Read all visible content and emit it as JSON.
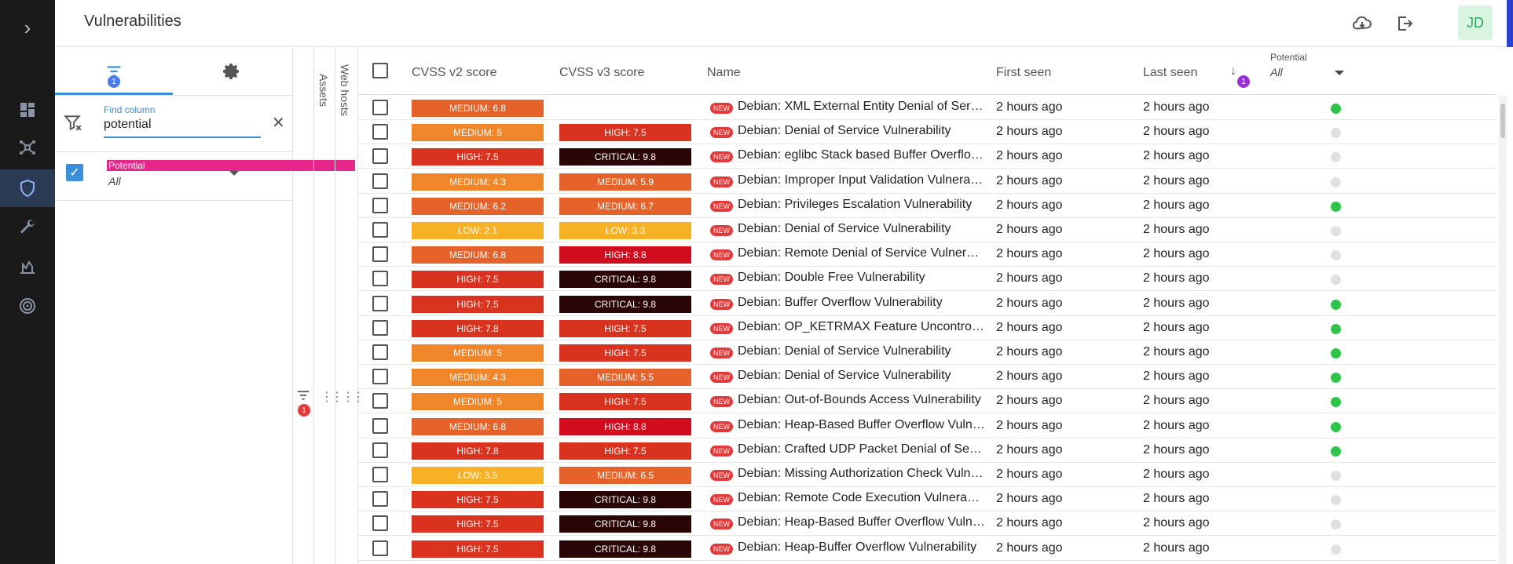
{
  "header": {
    "title": "Vulnerabilities",
    "avatar": "JD",
    "icons": [
      "cloud-download-icon",
      "logout-icon"
    ]
  },
  "nav": [
    "expand-icon",
    "dashboard-icon",
    "network-icon",
    "shield-icon",
    "wrench-icon",
    "activity-icon",
    "radar-icon"
  ],
  "panel": {
    "filters_badge": "1",
    "find_column_label": "Find column",
    "find_column_value": "potential",
    "column": {
      "name": "Potential",
      "value": "All",
      "checked": true
    }
  },
  "groups": {
    "assets_label": "Assets",
    "web_hosts_label": "Web hosts",
    "filter_badge": "1"
  },
  "table": {
    "columns": {
      "cvss2": "CVSS v2 score",
      "cvss3": "CVSS v3 score",
      "name": "Name",
      "first_seen": "First seen",
      "last_seen": "Last seen",
      "sort_badge": "1",
      "potential_label": "Potential",
      "potential_value": "All"
    },
    "new_tag": "NEW",
    "colors": {
      "LOW": "#f6b126",
      "MEDIUM": "#f0852a",
      "MEDIUM_DARK": "#e5632a",
      "HIGH": "#d9331f",
      "HIGH_RED": "#d10c1f",
      "CRITICAL": "#2a0505",
      "potential_true": "#2ec44a",
      "potential_false": "#e0e0e0"
    },
    "rows": [
      {
        "v2": "MEDIUM: 6.8",
        "v2c": "MEDIUM_DARK",
        "v3": "",
        "v3c": "",
        "name": "Debian: XML External Entity Denial of Service Vulnerability",
        "first": "2 hours ago",
        "last": "2 hours ago",
        "potential": true
      },
      {
        "v2": "MEDIUM: 5",
        "v2c": "MEDIUM",
        "v3": "HIGH: 7.5",
        "v3c": "HIGH",
        "name": "Debian: Denial of Service Vulnerability",
        "first": "2 hours ago",
        "last": "2 hours ago",
        "potential": false
      },
      {
        "v2": "HIGH: 7.5",
        "v2c": "HIGH",
        "v3": "CRITICAL: 9.8",
        "v3c": "CRITICAL",
        "name": "Debian: eglibc Stack based Buffer Overflow Vulnerability",
        "first": "2 hours ago",
        "last": "2 hours ago",
        "potential": false
      },
      {
        "v2": "MEDIUM: 4.3",
        "v2c": "MEDIUM",
        "v3": "MEDIUM: 5.9",
        "v3c": "MEDIUM_DARK",
        "name": "Debian: Improper Input Validation Vulnerability",
        "first": "2 hours ago",
        "last": "2 hours ago",
        "potential": false
      },
      {
        "v2": "MEDIUM: 6.2",
        "v2c": "MEDIUM_DARK",
        "v3": "MEDIUM: 6.7",
        "v3c": "MEDIUM_DARK",
        "name": "Debian: Privileges Escalation Vulnerability",
        "first": "2 hours ago",
        "last": "2 hours ago",
        "potential": true
      },
      {
        "v2": "LOW: 2.1",
        "v2c": "LOW",
        "v3": "LOW: 3.3",
        "v3c": "LOW",
        "name": "Debian: Denial of Service Vulnerability",
        "first": "2 hours ago",
        "last": "2 hours ago",
        "potential": false
      },
      {
        "v2": "MEDIUM: 6.8",
        "v2c": "MEDIUM_DARK",
        "v3": "HIGH: 8.8",
        "v3c": "HIGH_RED",
        "name": "Debian: Remote Denial of Service Vulnerability",
        "first": "2 hours ago",
        "last": "2 hours ago",
        "potential": false
      },
      {
        "v2": "HIGH: 7.5",
        "v2c": "HIGH",
        "v3": "CRITICAL: 9.8",
        "v3c": "CRITICAL",
        "name": "Debian: Double Free Vulnerability",
        "first": "2 hours ago",
        "last": "2 hours ago",
        "potential": false
      },
      {
        "v2": "HIGH: 7.5",
        "v2c": "HIGH",
        "v3": "CRITICAL: 9.8",
        "v3c": "CRITICAL",
        "name": "Debian: Buffer Overflow Vulnerability",
        "first": "2 hours ago",
        "last": "2 hours ago",
        "potential": true
      },
      {
        "v2": "HIGH: 7.8",
        "v2c": "HIGH",
        "v3": "HIGH: 7.5",
        "v3c": "HIGH",
        "name": "Debian: OP_KETRMAX Feature Uncontrolled Recursion Vulnerability",
        "first": "2 hours ago",
        "last": "2 hours ago",
        "potential": true
      },
      {
        "v2": "MEDIUM: 5",
        "v2c": "MEDIUM",
        "v3": "HIGH: 7.5",
        "v3c": "HIGH",
        "name": "Debian: Denial of Service Vulnerability",
        "first": "2 hours ago",
        "last": "2 hours ago",
        "potential": true
      },
      {
        "v2": "MEDIUM: 4.3",
        "v2c": "MEDIUM",
        "v3": "MEDIUM: 5.5",
        "v3c": "MEDIUM_DARK",
        "name": "Debian: Denial of Service Vulnerability",
        "first": "2 hours ago",
        "last": "2 hours ago",
        "potential": true
      },
      {
        "v2": "MEDIUM: 5",
        "v2c": "MEDIUM",
        "v3": "HIGH: 7.5",
        "v3c": "HIGH",
        "name": "Debian: Out-of-Bounds Access Vulnerability",
        "first": "2 hours ago",
        "last": "2 hours ago",
        "potential": true
      },
      {
        "v2": "MEDIUM: 6.8",
        "v2c": "MEDIUM_DARK",
        "v3": "HIGH: 8.8",
        "v3c": "HIGH_RED",
        "name": "Debian: Heap-Based Buffer Overflow Vulnerability",
        "first": "2 hours ago",
        "last": "2 hours ago",
        "potential": true
      },
      {
        "v2": "HIGH: 7.8",
        "v2c": "HIGH",
        "v3": "HIGH: 7.5",
        "v3c": "HIGH",
        "name": "Debian: Crafted UDP Packet Denial of Service Vulnerability",
        "first": "2 hours ago",
        "last": "2 hours ago",
        "potential": true
      },
      {
        "v2": "LOW: 3.5",
        "v2c": "LOW",
        "v3": "MEDIUM: 6.5",
        "v3c": "MEDIUM_DARK",
        "name": "Debian: Missing Authorization Check Vulnerability",
        "first": "2 hours ago",
        "last": "2 hours ago",
        "potential": false
      },
      {
        "v2": "HIGH: 7.5",
        "v2c": "HIGH",
        "v3": "CRITICAL: 9.8",
        "v3c": "CRITICAL",
        "name": "Debian: Remote Code Execution Vulnerability",
        "first": "2 hours ago",
        "last": "2 hours ago",
        "potential": false
      },
      {
        "v2": "HIGH: 7.5",
        "v2c": "HIGH",
        "v3": "CRITICAL: 9.8",
        "v3c": "CRITICAL",
        "name": "Debian: Heap-Based Buffer Overflow Vulnerability",
        "first": "2 hours ago",
        "last": "2 hours ago",
        "potential": false
      },
      {
        "v2": "HIGH: 7.5",
        "v2c": "HIGH",
        "v3": "CRITICAL: 9.8",
        "v3c": "CRITICAL",
        "name": "Debian: Heap-Buffer Overflow Vulnerability",
        "first": "2 hours ago",
        "last": "2 hours ago",
        "potential": false
      }
    ]
  }
}
